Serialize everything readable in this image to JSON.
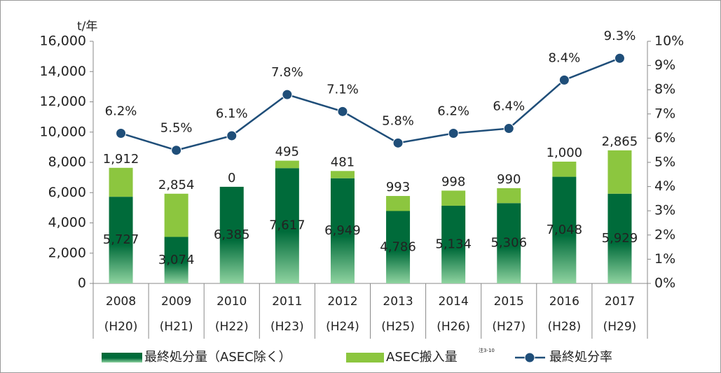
{
  "chart_data": {
    "type": "bar",
    "stacked": true,
    "y_unit_label": "t/年",
    "categories": [
      "2008",
      "2009",
      "2010",
      "2011",
      "2012",
      "2013",
      "2014",
      "2015",
      "2016",
      "2017"
    ],
    "categories_era": [
      "(H20)",
      "(H21)",
      "(H22)",
      "(H23)",
      "(H24)",
      "(H25)",
      "(H26)",
      "(H27)",
      "(H28)",
      "(H29)"
    ],
    "series": [
      {
        "name": "最終処分量（ASEC除く）",
        "color": "#006b3a",
        "gradient_color": "#8fd3a0",
        "values": [
          5727,
          3074,
          6385,
          7617,
          6949,
          4786,
          5134,
          5306,
          7048,
          5929
        ],
        "value_labels": [
          "5,727",
          "3,074",
          "6,385",
          "7,617",
          "6,949",
          "4,786",
          "5,134",
          "5,306",
          "7,048",
          "5,929"
        ]
      },
      {
        "name": "ASEC搬入量",
        "color": "#8cc63f",
        "values": [
          1912,
          2854,
          0,
          495,
          481,
          993,
          998,
          990,
          1000,
          2865
        ],
        "value_labels": [
          "1,912",
          "2,854",
          "0",
          "495",
          "481",
          "993",
          "998",
          "990",
          "1,000",
          "2,865"
        ]
      },
      {
        "name": "最終処分率",
        "color": "#1f4e79",
        "type": "line",
        "axis": "y2",
        "values": [
          6.2,
          5.5,
          6.1,
          7.8,
          7.1,
          5.8,
          6.2,
          6.4,
          8.4,
          9.3
        ],
        "value_labels": [
          "6.2%",
          "5.5%",
          "6.1%",
          "7.8%",
          "7.1%",
          "5.8%",
          "6.2%",
          "6.4%",
          "8.4%",
          "9.3%"
        ]
      }
    ],
    "legend_note": "注3-10",
    "ylim": [
      0,
      16000
    ],
    "yticks": [
      0,
      {
        "value": 2000,
        "label": "2,000"
      },
      {
        "value": 4000,
        "label": "4,000"
      },
      {
        "value": 6000,
        "label": "6,000"
      },
      {
        "value": 8000,
        "label": "8,000"
      },
      {
        "value": 10000,
        "label": "10,000"
      },
      {
        "value": 12000,
        "label": "12,000"
      },
      {
        "value": 14000,
        "label": "14,000"
      },
      {
        "value": 16000,
        "label": "16,000"
      }
    ],
    "y2lim": [
      0,
      10
    ],
    "y2ticks": [
      {
        "value": 0,
        "label": "0%"
      },
      {
        "value": 1,
        "label": "1%"
      },
      {
        "value": 2,
        "label": "2%"
      },
      {
        "value": 3,
        "label": "3%"
      },
      {
        "value": 4,
        "label": "4%"
      },
      {
        "value": 5,
        "label": "5%"
      },
      {
        "value": 6,
        "label": "6%"
      },
      {
        "value": 7,
        "label": "7%"
      },
      {
        "value": 8,
        "label": "8%"
      },
      {
        "value": 9,
        "label": "9%"
      },
      {
        "value": 10,
        "label": "10%"
      }
    ],
    "grid": false,
    "legend": "bottom"
  }
}
